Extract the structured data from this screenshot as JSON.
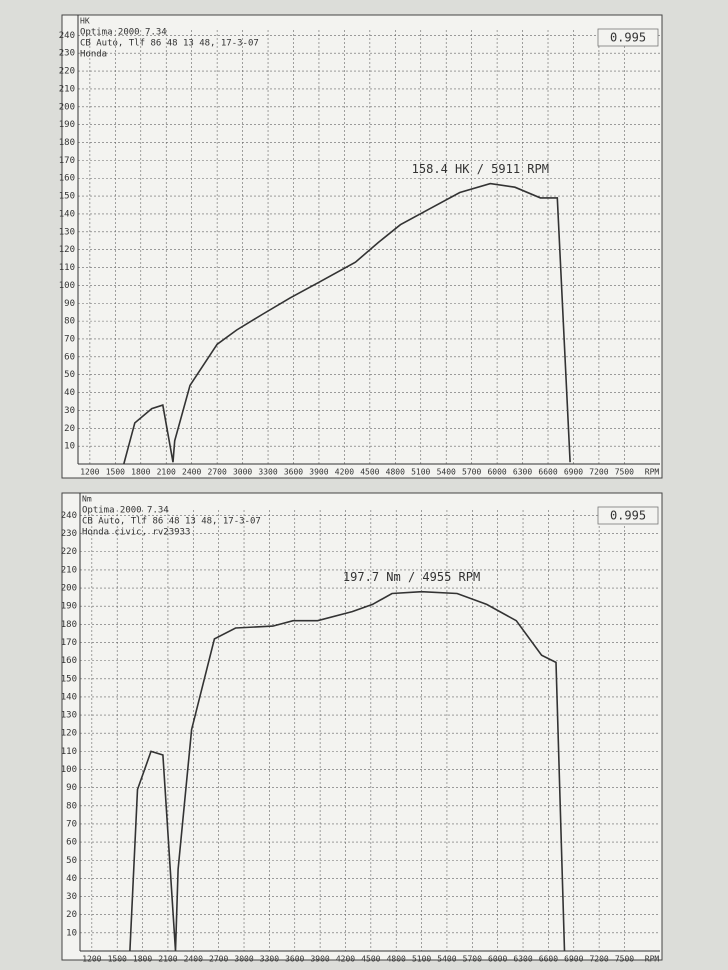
{
  "chart_data": [
    {
      "type": "line",
      "y_label": "HK",
      "x_label": "RPM",
      "badge": "0.995",
      "header": [
        "Optima 2000 7.34",
        "CB Auto, Tlf 86 48 13 48, 17-3-07",
        "Honda"
      ],
      "annotation": "158.4 HK / 5911 RPM",
      "x": [
        1600,
        1730,
        1930,
        2060,
        2180,
        2200,
        2380,
        2700,
        2930,
        3240,
        3560,
        3910,
        4330,
        4600,
        4860,
        5210,
        5560,
        5920,
        6210,
        6510,
        6710,
        6860
      ],
      "values": [
        0,
        23,
        31,
        33,
        1,
        13,
        44,
        67,
        75,
        84,
        93,
        102,
        113,
        124,
        134,
        143,
        152,
        157,
        155,
        149,
        149,
        1
      ],
      "color": "#333333",
      "xlim": [
        1060,
        7920
      ],
      "ylim": [
        0,
        243
      ],
      "xticks": [
        1200,
        1500,
        1800,
        2100,
        2400,
        2700,
        3000,
        3300,
        3600,
        3900,
        4200,
        4500,
        4800,
        5100,
        5400,
        5700,
        6000,
        6300,
        6600,
        6900,
        7200,
        7500
      ],
      "yticks": [
        10,
        20,
        30,
        40,
        50,
        60,
        70,
        80,
        90,
        100,
        110,
        120,
        130,
        140,
        150,
        160,
        170,
        180,
        190,
        200,
        210,
        220,
        230,
        240
      ],
      "grid": true
    },
    {
      "type": "line",
      "y_label": "Nm",
      "x_label": "RPM",
      "badge": "0.995",
      "header": [
        "Optima 2000 7.34",
        "CB Auto, Tlf 86 48 13 48, 17-3-07",
        "Honda civic, rv23933"
      ],
      "annotation": "197.7 Nm / 4955 RPM",
      "x": [
        1650,
        1740,
        1900,
        2040,
        2190,
        2220,
        2380,
        2650,
        2900,
        3340,
        3580,
        3870,
        4280,
        4520,
        4750,
        5100,
        5520,
        5870,
        6220,
        6520,
        6690,
        6790
      ],
      "values": [
        0,
        89,
        110,
        108,
        0,
        45,
        122,
        172,
        178,
        179,
        182,
        182,
        187,
        191,
        197,
        198,
        197,
        191,
        182,
        163,
        159,
        0
      ],
      "color": "#333333",
      "xlim": [
        1060,
        7920
      ],
      "ylim": [
        0,
        243
      ],
      "xticks": [
        1200,
        1500,
        1800,
        2100,
        2400,
        2700,
        3000,
        3300,
        3600,
        3900,
        4200,
        4500,
        4800,
        5100,
        5400,
        5700,
        6000,
        6300,
        6600,
        6900,
        7200,
        7500
      ],
      "yticks": [
        10,
        20,
        30,
        40,
        50,
        60,
        70,
        80,
        90,
        100,
        110,
        120,
        130,
        140,
        150,
        160,
        170,
        180,
        190,
        200,
        210,
        220,
        230,
        240
      ],
      "grid": true
    }
  ]
}
